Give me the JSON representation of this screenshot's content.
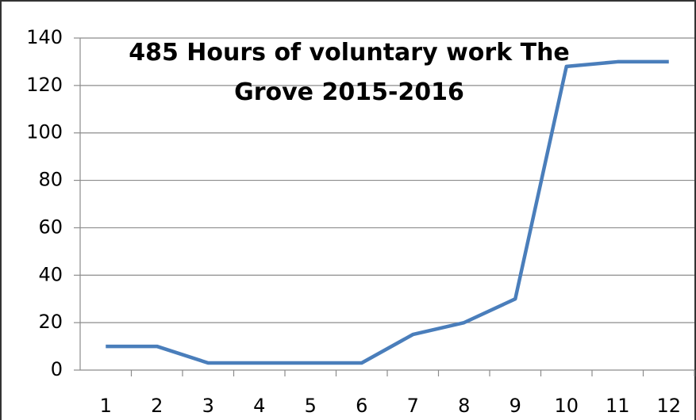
{
  "chart_data": {
    "type": "line",
    "title": "485 Hours of voluntary work The Grove 2015-2016",
    "categories": [
      "1",
      "2",
      "3",
      "4",
      "5",
      "6",
      "7",
      "8",
      "9",
      "10",
      "11",
      "12"
    ],
    "series": [
      {
        "name": "Hours",
        "color": "#4a7ebb",
        "values": [
          10,
          10,
          3,
          3,
          3,
          3,
          15,
          20,
          30,
          128,
          130,
          130
        ]
      }
    ],
    "ylim": [
      0,
      140
    ],
    "yticks": [
      0,
      20,
      40,
      60,
      80,
      100,
      120,
      140
    ],
    "grid": true
  }
}
